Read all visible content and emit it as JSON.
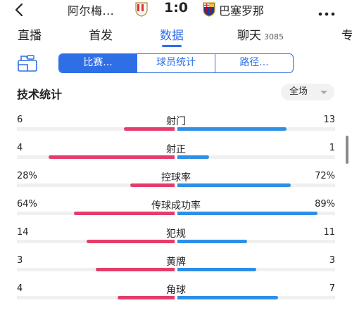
{
  "header": {
    "home_team": "阿尔梅...",
    "score": "1:0",
    "away_team": "巴塞罗那"
  },
  "tabs": [
    {
      "label": "直播"
    },
    {
      "label": "首发"
    },
    {
      "label": "数据",
      "active": true
    },
    {
      "label": "聊天",
      "count": "3085"
    },
    {
      "label": "专"
    }
  ],
  "subtabs": [
    {
      "label": "比赛...",
      "active": true
    },
    {
      "label": "球员统计"
    },
    {
      "label": "路径..."
    }
  ],
  "section": {
    "title": "技术统计",
    "filter": "全场"
  },
  "colors": {
    "accent": "#2e6fe6",
    "home_bar": "#e63c6b",
    "away_bar": "#2e8fe6"
  },
  "stats": [
    {
      "label": "射门",
      "home": "6",
      "away": "13",
      "home_fill": 0.32,
      "away_fill": 0.69
    },
    {
      "label": "射正",
      "home": "4",
      "away": "1",
      "home_fill": 0.8,
      "away_fill": 0.2
    },
    {
      "label": "控球率",
      "home": "28%",
      "away": "72%",
      "home_fill": 0.28,
      "away_fill": 0.72
    },
    {
      "label": "传球成功率",
      "home": "64%",
      "away": "89%",
      "home_fill": 0.64,
      "away_fill": 0.89
    },
    {
      "label": "犯规",
      "home": "14",
      "away": "11",
      "home_fill": 0.56,
      "away_fill": 0.44
    },
    {
      "label": "黄牌",
      "home": "3",
      "away": "3",
      "home_fill": 0.5,
      "away_fill": 0.5
    },
    {
      "label": "角球",
      "home": "4",
      "away": "7",
      "home_fill": 0.36,
      "away_fill": 0.64
    }
  ]
}
